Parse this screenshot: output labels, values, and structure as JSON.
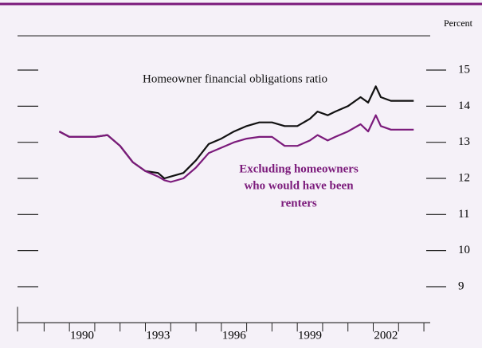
{
  "chart_data": {
    "type": "line",
    "y_axis_label": "Percent",
    "annotations": [
      {
        "text": "Homeowner financial obligations ratio",
        "color": "#111111"
      },
      {
        "text": "Excluding homeowners",
        "color": "#7b1a7b"
      },
      {
        "text": "who would have been",
        "color": "#7b1a7b"
      },
      {
        "text": "renters",
        "color": "#7b1a7b"
      }
    ],
    "x": [
      1989.1,
      1989.5,
      1990,
      1990.5,
      1991,
      1991.5,
      1992,
      1992.5,
      1993,
      1993.25,
      1993.5,
      1994,
      1994.5,
      1995,
      1995.5,
      1996,
      1996.5,
      1997,
      1997.5,
      1998,
      1998.5,
      1999,
      1999.3,
      1999.7,
      2000,
      2000.5,
      2001,
      2001.3,
      2001.6,
      2001.8,
      2002.2,
      2002.6,
      2003,
      2003.1
    ],
    "series": [
      {
        "name": "Homeowner financial obligations ratio",
        "color": "#111111",
        "values": [
          13.3,
          13.15,
          13.15,
          13.15,
          13.2,
          12.9,
          12.45,
          12.2,
          12.15,
          12.0,
          12.05,
          12.15,
          12.5,
          12.95,
          13.1,
          13.3,
          13.45,
          13.55,
          13.55,
          13.45,
          13.45,
          13.65,
          13.85,
          13.75,
          13.85,
          14.0,
          14.25,
          14.1,
          14.55,
          14.25,
          14.15,
          14.15,
          14.15,
          14.15
        ]
      },
      {
        "name": "Excluding homeowners who would have been renters",
        "color": "#7b1a7b",
        "values": [
          13.3,
          13.15,
          13.15,
          13.15,
          13.2,
          12.9,
          12.45,
          12.2,
          12.05,
          11.95,
          11.9,
          12.0,
          12.3,
          12.7,
          12.85,
          13.0,
          13.1,
          13.15,
          13.15,
          12.9,
          12.9,
          13.05,
          13.2,
          13.05,
          13.15,
          13.3,
          13.5,
          13.3,
          13.75,
          13.45,
          13.35,
          13.35,
          13.35,
          13.35
        ]
      }
    ],
    "xlim": [
      1987.45,
      2003.75
    ],
    "xticks": [
      1990,
      1993,
      1996,
      1999,
      2002
    ],
    "ylim": [
      8,
      16
    ],
    "yticks": [
      9,
      10,
      11,
      12,
      13,
      14,
      15
    ]
  }
}
